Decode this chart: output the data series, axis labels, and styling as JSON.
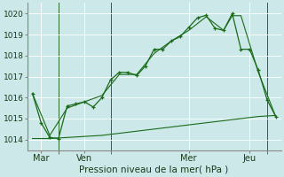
{
  "xlabel": "Pression niveau de la mer( hPa )",
  "bg_color": "#cce8e8",
  "line_color": "#1a6b1a",
  "ylim": [
    1013.5,
    1020.5
  ],
  "xlim": [
    -0.5,
    14.5
  ],
  "day_labels": [
    "Mar",
    "Ven",
    "Mer",
    "Jeu"
  ],
  "day_positions": [
    0.5,
    3,
    9,
    12.5
  ],
  "yticks": [
    1014,
    1015,
    1016,
    1017,
    1018,
    1019,
    1020
  ],
  "vline_positions": [
    1.5,
    4.5,
    13.5
  ],
  "line1_x": [
    0,
    0.5,
    1.0,
    1.5,
    2.0,
    2.5,
    3.0,
    3.5,
    4.0,
    4.5,
    5.0,
    5.5,
    6.0,
    6.5,
    7.0,
    7.5,
    8.0,
    8.5,
    9.0,
    9.5,
    10.0,
    10.5,
    11.0,
    11.5,
    12.0,
    12.5,
    13.0,
    13.5,
    14.0
  ],
  "line1_y": [
    1016.2,
    1014.8,
    1014.1,
    1014.05,
    1015.6,
    1015.7,
    1015.8,
    1015.55,
    1016.0,
    1016.85,
    1017.2,
    1017.2,
    1017.05,
    1017.5,
    1018.3,
    1018.3,
    1018.7,
    1018.9,
    1019.35,
    1019.8,
    1019.92,
    1019.3,
    1019.2,
    1020.0,
    1018.3,
    1018.3,
    1017.3,
    1015.9,
    1015.1
  ],
  "line2_x": [
    0,
    1.0,
    2.0,
    3.0,
    4.0,
    5.0,
    6.0,
    7.0,
    8.0,
    9.0,
    10.0,
    11.0,
    11.5,
    12.0,
    13.0,
    14.0
  ],
  "line2_y": [
    1016.2,
    1014.2,
    1015.5,
    1015.8,
    1016.1,
    1017.1,
    1017.1,
    1018.1,
    1018.7,
    1019.2,
    1019.85,
    1019.2,
    1019.9,
    1019.9,
    1017.2,
    1015.1
  ],
  "line3_x": [
    0,
    1,
    2,
    3,
    4,
    5,
    6,
    7,
    8,
    9,
    10,
    11,
    12,
    13,
    14
  ],
  "line3_y": [
    1014.05,
    1014.05,
    1014.1,
    1014.15,
    1014.2,
    1014.3,
    1014.4,
    1014.5,
    1014.6,
    1014.7,
    1014.8,
    1014.9,
    1015.0,
    1015.1,
    1015.15
  ]
}
